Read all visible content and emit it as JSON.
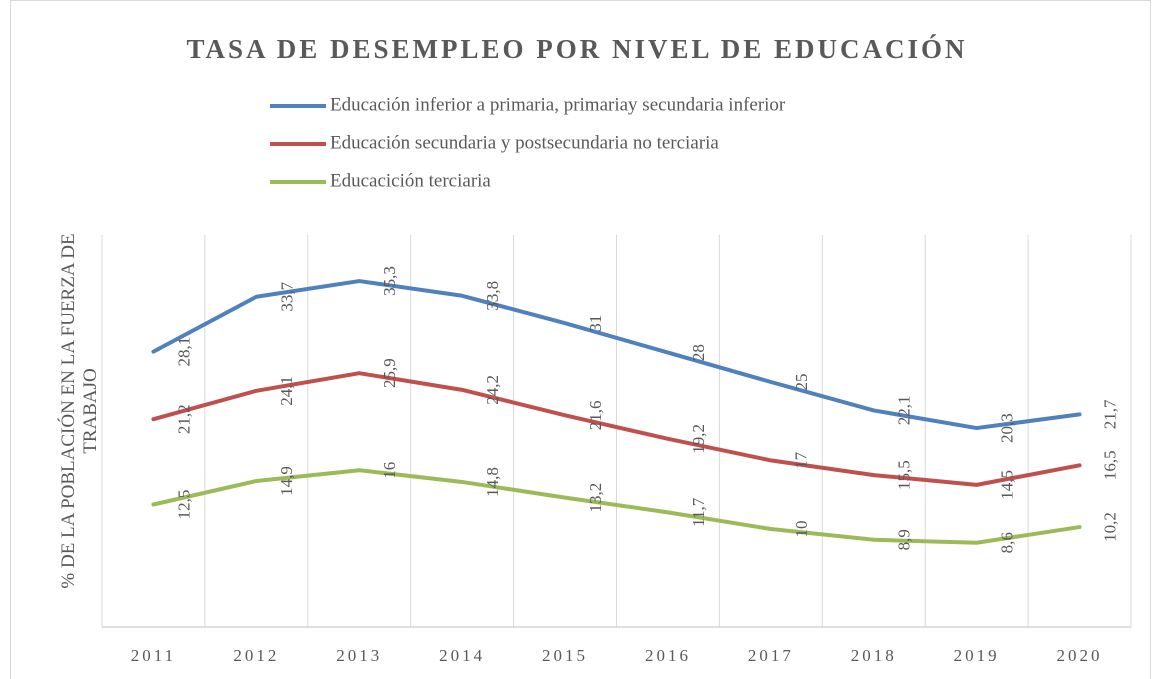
{
  "chart_data": {
    "type": "line",
    "title": "TASA DE DESEMPLEO POR NIVEL DE EDUCACIÓN",
    "y_label": "% DE LA POBLACIÓN EN LA FUERZA DE TRABAJO",
    "categories": [
      "2011",
      "2012",
      "2013",
      "2014",
      "2015",
      "2016",
      "2017",
      "2018",
      "2019",
      "2020"
    ],
    "ylim": [
      0,
      40
    ],
    "grid": true,
    "series": [
      {
        "name": "Educación inferior a primaria, primariay secundaria inferior",
        "color": "#4f81bd",
        "values": [
          28.1,
          33.7,
          35.3,
          33.8,
          31,
          28,
          25,
          22.1,
          20.3,
          21.7
        ],
        "value_labels": [
          "28,1",
          "33,7",
          "35,3",
          "33,8",
          "31",
          "28",
          "25",
          "22,1",
          "20,3",
          "21,7"
        ]
      },
      {
        "name": "Educación secundaria y postsecundaria no terciaria",
        "color": "#c0504d",
        "values": [
          21.2,
          24.1,
          25.9,
          24.2,
          21.6,
          19.2,
          17,
          15.5,
          14.5,
          16.5
        ],
        "value_labels": [
          "21,2",
          "24,1",
          "25,9",
          "24,2",
          "21,6",
          "19,2",
          "17",
          "15,5",
          "14,5",
          "16,5"
        ]
      },
      {
        "name": "Educacición terciaria",
        "color": "#9bbb59",
        "values": [
          12.5,
          14.9,
          16,
          14.8,
          13.2,
          11.7,
          10,
          8.9,
          8.6,
          10.2
        ],
        "value_labels": [
          "12,5",
          "14,9",
          "16",
          "14,8",
          "13,2",
          "11,7",
          "10",
          "8,9",
          "8,6",
          "10,2"
        ]
      }
    ]
  }
}
